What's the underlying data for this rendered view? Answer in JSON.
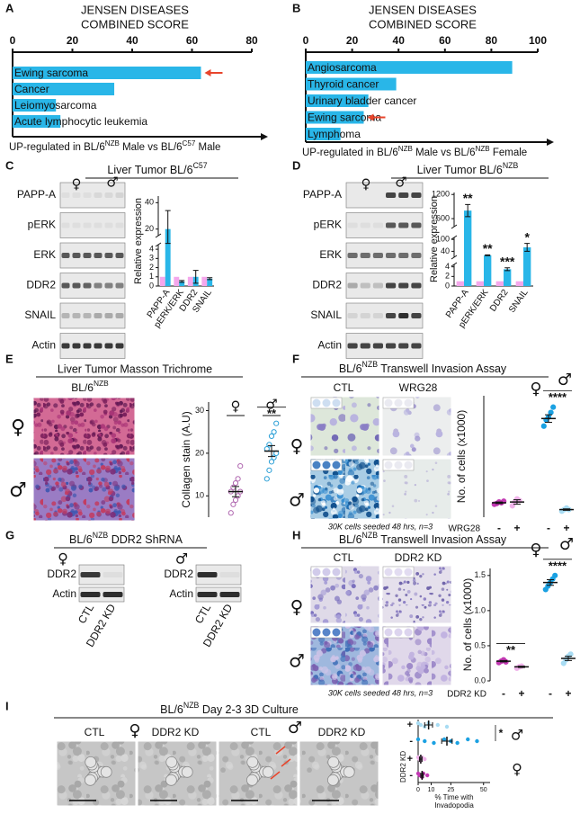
{
  "figure": {
    "panel_letters": [
      "A",
      "B",
      "C",
      "D",
      "E",
      "F",
      "G",
      "H",
      "I"
    ],
    "symbols": {
      "female": "♀",
      "male": "♂"
    },
    "C": {
      "title": [
        "Liver Tumor BL/6",
        "C57"
      ],
      "blot_labels": [
        "PAPP-A",
        "pERK",
        "ERK",
        "DDR2",
        "SNAIL",
        "Actin"
      ]
    },
    "D": {
      "title": [
        "Liver Tumor BL/6",
        "NZB"
      ],
      "blot_labels": [
        "PAPP-A",
        "pERK",
        "ERK",
        "DDR2",
        "SNAIL",
        "Actin"
      ]
    },
    "E": {
      "title": "Liver Tumor Masson Trichrome",
      "strain": [
        "BL/6",
        "NZB"
      ]
    },
    "F": {
      "title": [
        "BL/6",
        "NZB",
        " Transwell Invasion Assay"
      ],
      "conditions": [
        "CTL",
        "WRG28"
      ],
      "caption": "30K cells seeded 48 hrs, n=3"
    },
    "G": {
      "title": [
        "BL/6",
        "NZB",
        " DDR2 ShRNA"
      ],
      "blot_labels": [
        "DDR2",
        "Actin"
      ],
      "lanes": [
        "CTL",
        "DDR2 KD"
      ]
    },
    "H": {
      "title": [
        "BL/6",
        "NZB",
        " Transwell Invasion Assay"
      ],
      "conditions": [
        "CTL",
        "DDR2 KD"
      ],
      "caption": "30K cells seeded 48 hrs, n=3"
    },
    "I": {
      "title": [
        "BL/6",
        "NZB",
        "  Day 2-3 3D Culture"
      ],
      "conditions": [
        "CTL",
        "DDR2 KD"
      ]
    }
  },
  "chart_data": [
    {
      "type": "hbar",
      "title_lines": [
        "JENSEN DISEASES",
        "COMBINED SCORE"
      ],
      "categories": [
        "Ewing sarcoma",
        "Cancer",
        "Leiomyosarcoma",
        "Acute lymphocytic leukemia"
      ],
      "values": [
        63,
        34,
        14.5,
        16
      ],
      "color": "#29b6e8",
      "xlim": [
        0,
        80
      ],
      "xticks": [
        0,
        20,
        40,
        60,
        80
      ],
      "xlabel": [
        "UP-regulated  in  BL/6",
        "NZB",
        " Male vs BL/6",
        "C57",
        " Male"
      ]
    },
    {
      "type": "hbar",
      "title_lines": [
        "JENSEN DISEASES",
        "COMBINED SCORE"
      ],
      "categories": [
        "Angiosarcoma",
        "Thyroid cancer",
        "Urinary bladder cancer",
        "Ewing sarcoma",
        "Lymphoma"
      ],
      "values": [
        89,
        39,
        27,
        25,
        15
      ],
      "color": "#29b6e8",
      "xlim": [
        0,
        100
      ],
      "xticks": [
        0,
        20,
        40,
        60,
        80,
        100
      ],
      "xlabel": [
        "UP-regulated  in  BL/6",
        "NZB",
        " Male vs BL/6",
        "NZB",
        " Female"
      ]
    },
    {
      "type": "bar",
      "ylabel": "Relative expression",
      "categories": [
        "PAPP-A",
        "pERK/ERK",
        "DDR2",
        "SNAIL"
      ],
      "series": [
        {
          "color": "#f4a7ec",
          "values": [
            1,
            1,
            1,
            1
          ]
        },
        {
          "color": "#29b6e8",
          "values": [
            20,
            0.5,
            1,
            0.8
          ],
          "errors": [
            14,
            0.1,
            0.7,
            0.1
          ]
        }
      ],
      "y_segments": [
        {
          "ylim": [
            0,
            4.5
          ],
          "yticks": [
            0,
            1,
            2,
            3,
            4
          ]
        },
        {
          "ylim": [
            15,
            45
          ],
          "yticks": [
            20,
            40
          ]
        }
      ]
    },
    {
      "type": "bar",
      "ylabel": "Relative expression",
      "categories": [
        "PAPP-A",
        "pERK/ERK",
        "DDR2",
        "SNAIL"
      ],
      "series": [
        {
          "color": "#f4a7ec",
          "values": [
            1,
            1,
            1,
            1
          ]
        },
        {
          "color": "#29b6e8",
          "values": [
            800,
            20,
            3.5,
            60
          ],
          "errors": [
            150,
            2,
            0.3,
            20
          ],
          "annotations": [
            "**",
            "**",
            "***",
            "*"
          ]
        }
      ],
      "y_segments": [
        {
          "ylim": [
            0,
            4.5
          ],
          "yticks": [
            0,
            2,
            4
          ]
        },
        {
          "ylim": [
            10,
            110
          ],
          "yticks": [
            40,
            100
          ]
        },
        {
          "ylim": [
            400,
            1250
          ],
          "yticks": [
            600,
            1200
          ]
        }
      ]
    },
    {
      "type": "dot",
      "ylabel": "Collagen stain (A.U)",
      "ylim": [
        5,
        32
      ],
      "yticks": [
        10,
        20,
        30
      ],
      "marker": "hollow",
      "series": [
        {
          "color": "#b068b0",
          "values": [
            6,
            8,
            9,
            10,
            11,
            11,
            12,
            13,
            14,
            17
          ],
          "mean": 11,
          "sem": 1.2
        },
        {
          "color": "#2a9fd6",
          "values": [
            14,
            16,
            18,
            19,
            20,
            21,
            22,
            24,
            25,
            27
          ],
          "mean": 20.5,
          "sem": 1.3,
          "annotation": "**"
        }
      ]
    },
    {
      "type": "dot",
      "ylabel": "No. of cells (x1000)",
      "ylim": [
        0,
        1.6
      ],
      "xlabel": "WRG28",
      "x_labels": [
        "-",
        "+",
        "-",
        "+"
      ],
      "series": [
        {
          "color": "#c239b3",
          "values": [
            0.17,
            0.18,
            0.2,
            0.19,
            0.21
          ],
          "mean": 0.19,
          "sem": 0.01
        },
        {
          "color": "#f0b3ea",
          "values": [
            0.15,
            0.2,
            0.24,
            0.22
          ],
          "mean": 0.2,
          "sem": 0.03
        },
        {
          "color": "#1ba1e2",
          "values": [
            1.2,
            1.28,
            1.32,
            1.38,
            1.45
          ],
          "mean": 1.3,
          "sem": 0.05,
          "annotation": "****"
        },
        {
          "color": "#a8dcf3",
          "values": [
            0.08,
            0.1,
            0.12,
            0.1
          ],
          "mean": 0.1,
          "sem": 0.01
        }
      ]
    },
    {
      "type": "dot",
      "ylabel": "No. of cells (x1000)",
      "ylim": [
        0,
        1.6
      ],
      "yticks": [
        {
          "value": 0,
          "label": "0.0"
        },
        0.5,
        {
          "value": 1,
          "label": "1.0"
        },
        1.5
      ],
      "xlabel": "DDR2 KD",
      "x_labels": [
        "-",
        "+",
        "-",
        "+"
      ],
      "series": [
        {
          "color": "#c239b3",
          "values": [
            0.26,
            0.28,
            0.3,
            0.27
          ],
          "mean": 0.28,
          "sem": 0.01,
          "annotation": "**"
        },
        {
          "color": "#f0b3ea",
          "values": [
            0.18,
            0.2,
            0.21
          ],
          "mean": 0.2,
          "sem": 0.01
        },
        {
          "color": "#1ba1e2",
          "values": [
            1.3,
            1.35,
            1.4,
            1.45,
            1.5
          ],
          "mean": 1.4,
          "sem": 0.04,
          "annotation": "****"
        },
        {
          "color": "#a8dcf3",
          "values": [
            0.25,
            0.3,
            0.35,
            0.38
          ],
          "mean": 0.32,
          "sem": 0.03
        }
      ]
    },
    {
      "type": "hdot",
      "xlabel": [
        "% Time with",
        "Invadopodia"
      ],
      "ylabel": "DDR2 KD",
      "xlim": [
        0,
        55
      ],
      "xticks": [
        0,
        10,
        25,
        50
      ],
      "y_labels": [
        "+",
        "-",
        "+",
        "-"
      ],
      "series": [
        {
          "color": "#a8dcf3",
          "values": [
            0,
            2,
            5,
            8,
            15,
            22
          ],
          "mean": 8,
          "sem": 3
        },
        {
          "color": "#1ba1e2",
          "values": [
            0,
            5,
            12,
            20,
            25,
            30,
            38,
            45
          ],
          "mean": 22,
          "sem": 4,
          "annotation": "*"
        },
        {
          "color": "#f0b3ea",
          "values": [
            0,
            1,
            2,
            3,
            5
          ],
          "mean": 2,
          "sem": 1
        },
        {
          "color": "#c239b3",
          "values": [
            0,
            1,
            3,
            4,
            7
          ],
          "mean": 3,
          "sem": 1
        }
      ]
    }
  ]
}
